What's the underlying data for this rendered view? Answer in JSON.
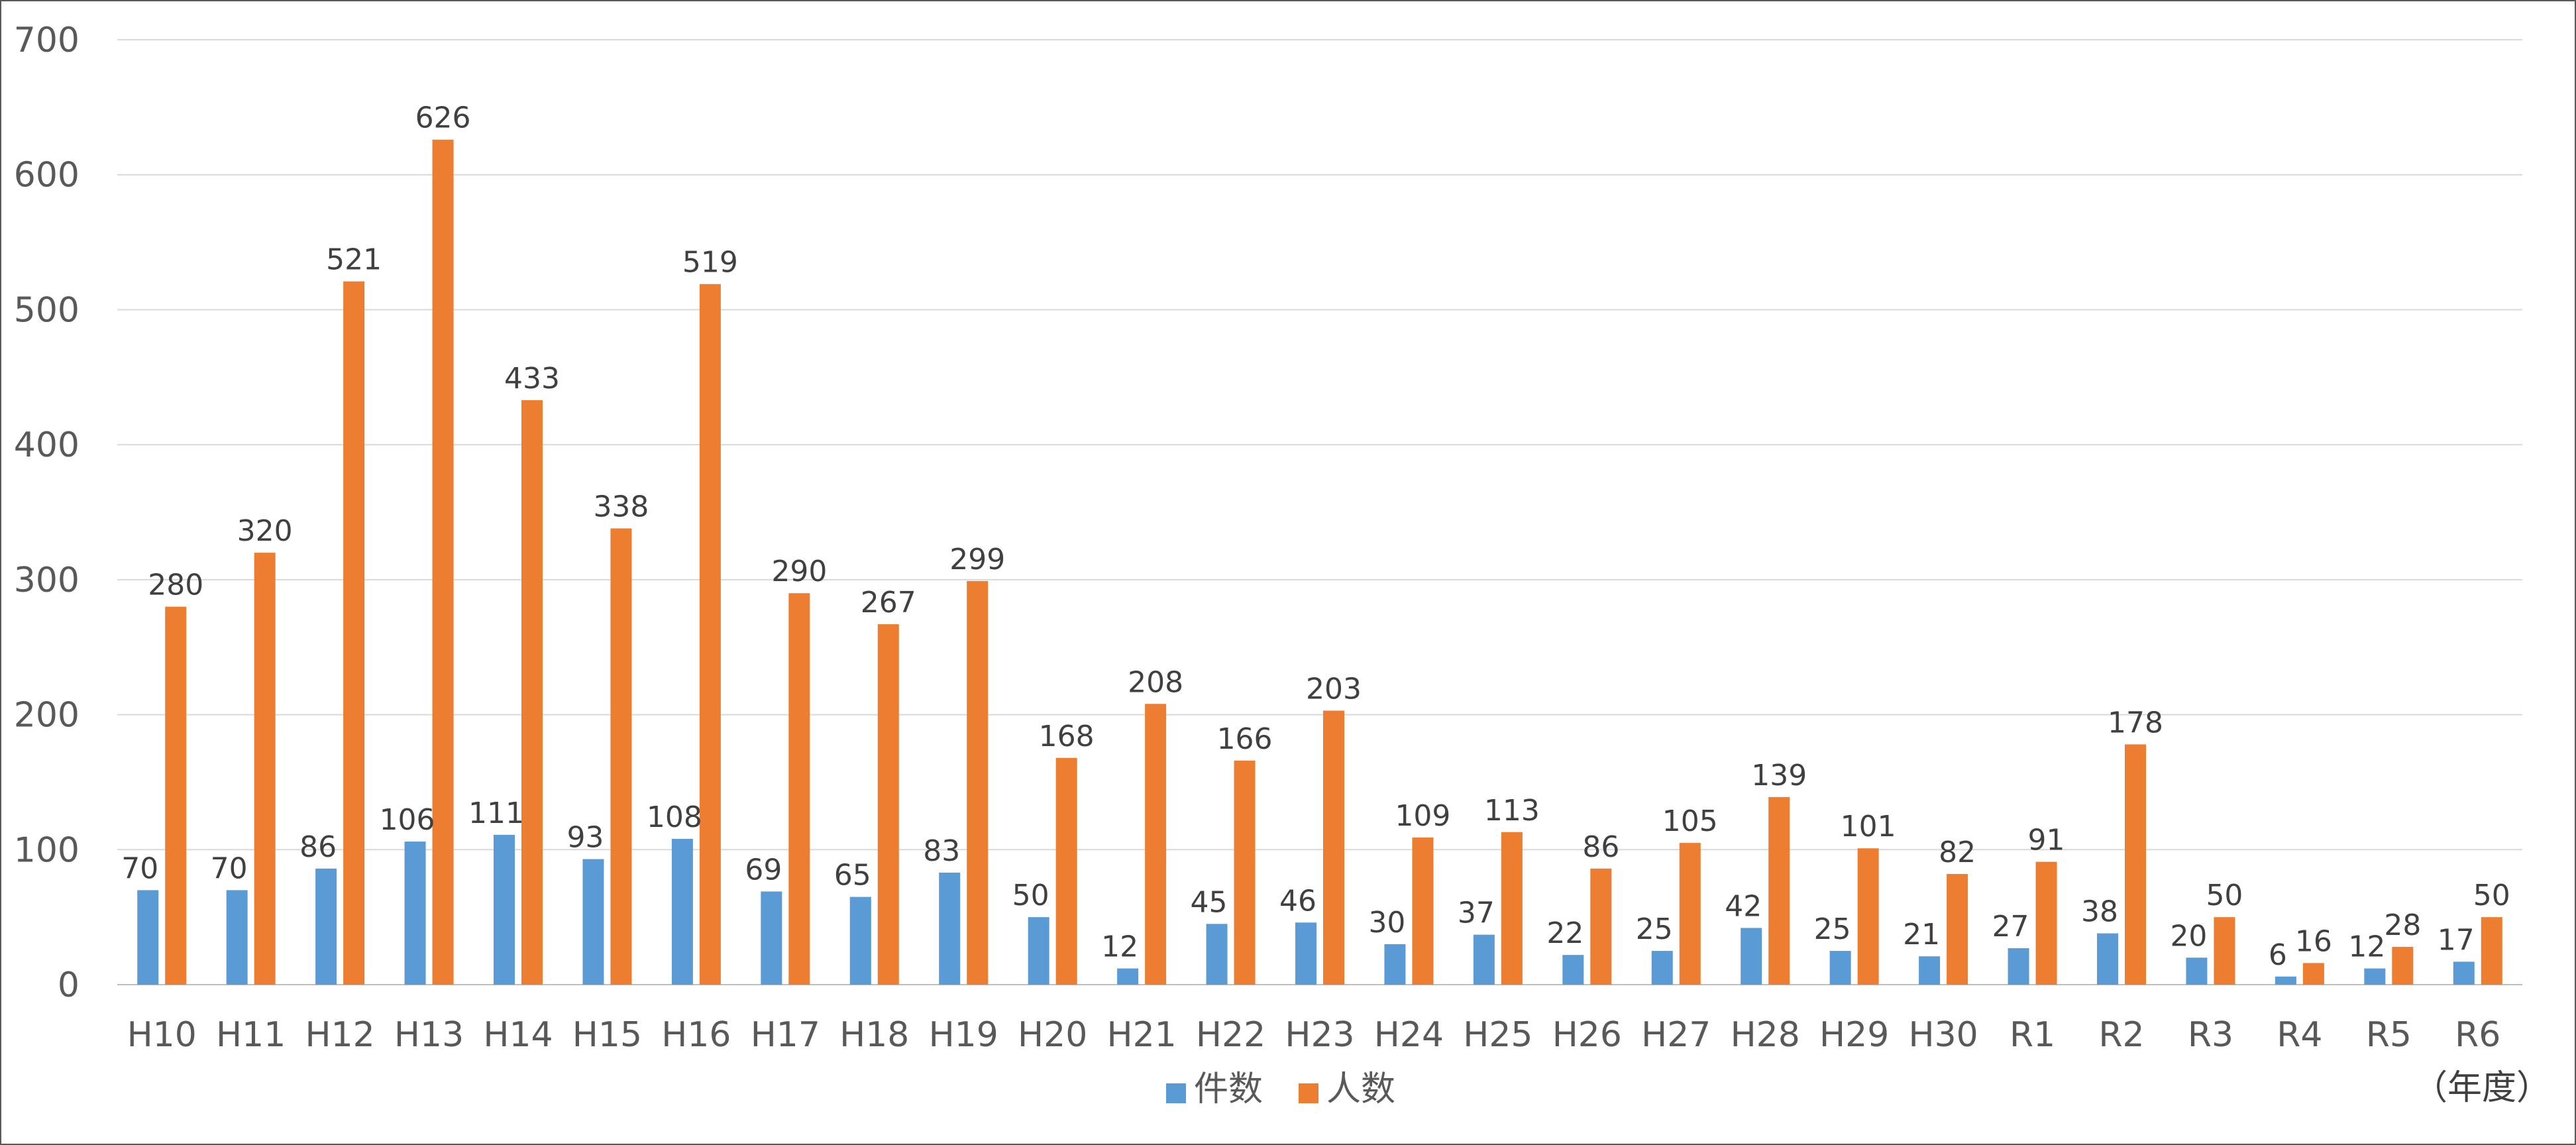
{
  "chart_data": {
    "type": "bar",
    "categories": [
      "H10",
      "H11",
      "H12",
      "H13",
      "H14",
      "H15",
      "H16",
      "H17",
      "H18",
      "H19",
      "H20",
      "H21",
      "H22",
      "H23",
      "H24",
      "H25",
      "H26",
      "H27",
      "H28",
      "H29",
      "H30",
      "R1",
      "R2",
      "R3",
      "R4",
      "R5",
      "R6"
    ],
    "series": [
      {
        "name": "件数",
        "color": "#5B9BD5",
        "values": [
          70,
          70,
          86,
          106,
          111,
          93,
          108,
          69,
          65,
          83,
          50,
          12,
          45,
          46,
          30,
          37,
          22,
          25,
          42,
          25,
          21,
          27,
          38,
          20,
          6,
          12,
          17
        ]
      },
      {
        "name": "人数",
        "color": "#ED7D31",
        "values": [
          280,
          320,
          521,
          626,
          433,
          338,
          519,
          290,
          267,
          299,
          168,
          208,
          166,
          203,
          109,
          113,
          86,
          105,
          139,
          101,
          82,
          91,
          178,
          50,
          16,
          28,
          50
        ]
      }
    ],
    "ylim": [
      0,
      700
    ],
    "yticks": [
      0,
      100,
      200,
      300,
      400,
      500,
      600,
      700
    ],
    "grid": true,
    "legend_position": "bottom",
    "data_labels": true,
    "x_unit_label": "（年度）"
  }
}
